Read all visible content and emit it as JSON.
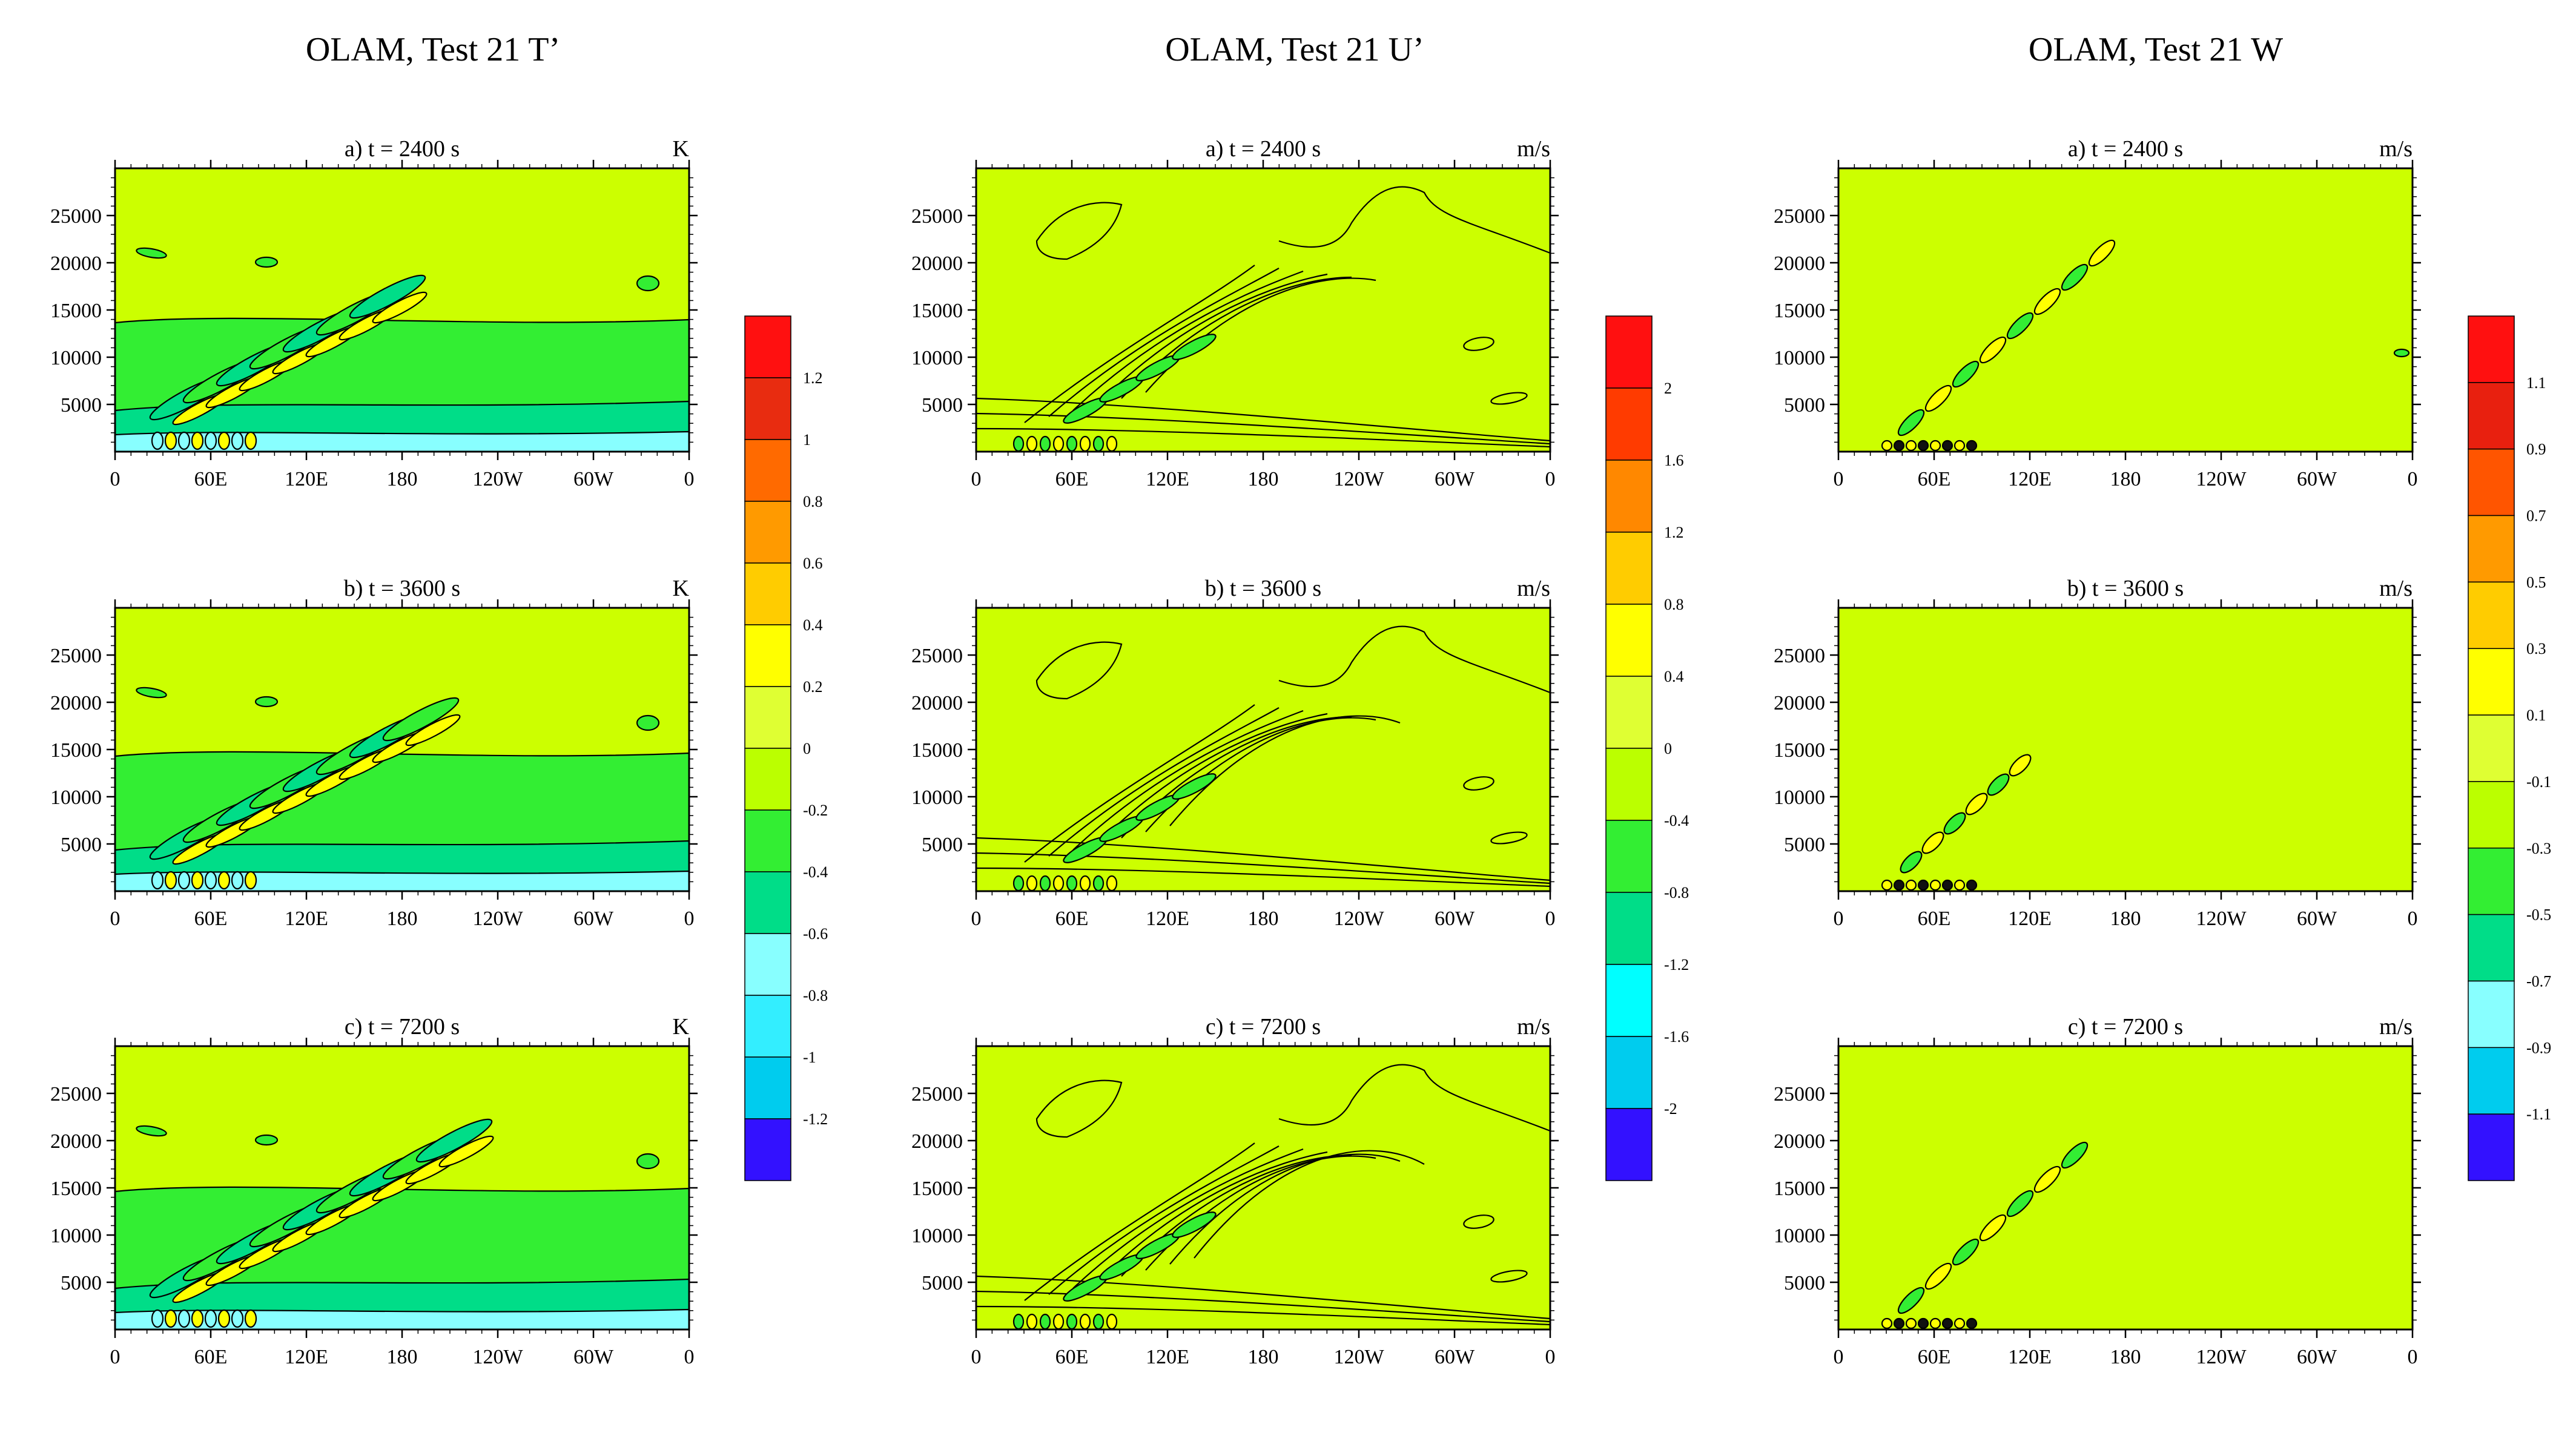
{
  "figure": {
    "columns": [
      {
        "title": "OLAM, Test 21 T’",
        "unit": "K",
        "colorbar": {
          "labels": [
            "1.2",
            "1",
            "0.8",
            "0.6",
            "0.4",
            "0.2",
            "0",
            "-0.2",
            "-0.4",
            "-0.6",
            "-0.8",
            "-1",
            "-1.2"
          ],
          "colors": [
            "#ff1010",
            "#e82c10",
            "#ff6a00",
            "#ff9a00",
            "#ffcc00",
            "#ffff00",
            "#dfff33",
            "#bbff00",
            "#33ee33",
            "#00dd88",
            "#88ffff",
            "#33eeff",
            "#00ccee",
            "#3311ff"
          ]
        }
      },
      {
        "title": "OLAM, Test 21 U’",
        "unit": "m/s",
        "colorbar": {
          "labels": [
            "2",
            "1.6",
            "1.2",
            "0.8",
            "0.4",
            "0",
            "-0.4",
            "-0.8",
            "-1.2",
            "-1.6",
            "-2"
          ],
          "colors": [
            "#ff1010",
            "#ff3b00",
            "#ff8800",
            "#ffcc00",
            "#ffff00",
            "#dfff33",
            "#bbff00",
            "#33ee33",
            "#00dd88",
            "#00ffff",
            "#00ccee",
            "#3311ff"
          ]
        }
      },
      {
        "title": "OLAM, Test 21 W",
        "unit": "m/s",
        "colorbar": {
          "labels": [
            "1.1",
            "0.9",
            "0.7",
            "0.5",
            "0.3",
            "0.1",
            "-0.1",
            "-0.3",
            "-0.5",
            "-0.7",
            "-0.9",
            "-1.1"
          ],
          "colors": [
            "#ff1010",
            "#e8200f",
            "#ff5500",
            "#ff9a00",
            "#ffcc00",
            "#ffff00",
            "#dfff33",
            "#bbff00",
            "#33ee33",
            "#00dd88",
            "#88ffff",
            "#00ccee",
            "#3311ff"
          ]
        }
      }
    ],
    "panel_titles": [
      "a) t = 2400 s",
      "b) t = 3600 s",
      "c) t = 7200 s"
    ],
    "x_ticks": [
      "0",
      "60E",
      "120E",
      "180",
      "120W",
      "60W",
      "0"
    ],
    "y_ticks": [
      "5000",
      "10000",
      "15000",
      "20000",
      "25000"
    ]
  },
  "chart_data": [
    {
      "type": "heatmap",
      "field": "T’",
      "unit": "K",
      "time": "2400 s",
      "x_ticks": [
        "0",
        "60E",
        "120E",
        "180",
        "120W",
        "60W",
        "0"
      ],
      "ylim": [
        0,
        30000
      ],
      "contour_interval": 0.2
    },
    {
      "type": "heatmap",
      "field": "T’",
      "unit": "K",
      "time": "3600 s",
      "x_ticks": [
        "0",
        "60E",
        "120E",
        "180",
        "120W",
        "60W",
        "0"
      ],
      "ylim": [
        0,
        30000
      ],
      "contour_interval": 0.2
    },
    {
      "type": "heatmap",
      "field": "T’",
      "unit": "K",
      "time": "7200 s",
      "x_ticks": [
        "0",
        "60E",
        "120E",
        "180",
        "120W",
        "60W",
        "0"
      ],
      "ylim": [
        0,
        30000
      ],
      "contour_interval": 0.2
    },
    {
      "type": "heatmap",
      "field": "U’",
      "unit": "m/s",
      "time": "2400 s",
      "x_ticks": [
        "0",
        "60E",
        "120E",
        "180",
        "120W",
        "60W",
        "0"
      ],
      "ylim": [
        0,
        30000
      ],
      "contour_interval": 0.4
    },
    {
      "type": "heatmap",
      "field": "U’",
      "unit": "m/s",
      "time": "3600 s",
      "x_ticks": [
        "0",
        "60E",
        "120E",
        "180",
        "120W",
        "60W",
        "0"
      ],
      "ylim": [
        0,
        30000
      ],
      "contour_interval": 0.4
    },
    {
      "type": "heatmap",
      "field": "U’",
      "unit": "m/s",
      "time": "7200 s",
      "x_ticks": [
        "0",
        "60E",
        "120E",
        "180",
        "120W",
        "60W",
        "0"
      ],
      "ylim": [
        0,
        30000
      ],
      "contour_interval": 0.4
    },
    {
      "type": "heatmap",
      "field": "W",
      "unit": "m/s",
      "time": "2400 s",
      "x_ticks": [
        "0",
        "60E",
        "120E",
        "180",
        "120W",
        "60W",
        "0"
      ],
      "ylim": [
        0,
        30000
      ],
      "contour_interval": 0.2
    },
    {
      "type": "heatmap",
      "field": "W",
      "unit": "m/s",
      "time": "3600 s",
      "x_ticks": [
        "0",
        "60E",
        "120E",
        "180",
        "120W",
        "60W",
        "0"
      ],
      "ylim": [
        0,
        30000
      ],
      "contour_interval": 0.2
    },
    {
      "type": "heatmap",
      "field": "W",
      "unit": "m/s",
      "time": "7200 s",
      "x_ticks": [
        "0",
        "60E",
        "120E",
        "180",
        "120W",
        "60W",
        "0"
      ],
      "ylim": [
        0,
        30000
      ],
      "contour_interval": 0.2
    }
  ]
}
